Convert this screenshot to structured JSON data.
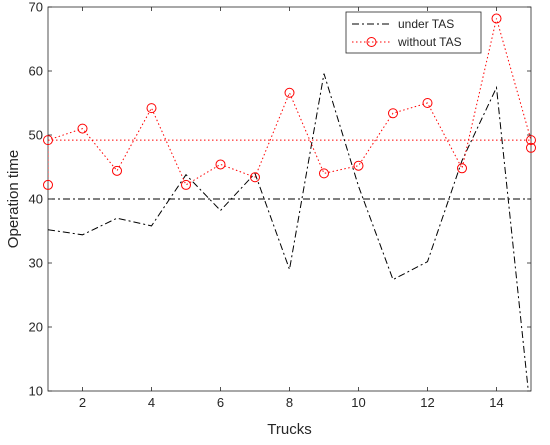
{
  "chart_data": {
    "type": "line",
    "xlabel": "Trucks",
    "ylabel": "Operation time",
    "xlim": [
      1,
      15
    ],
    "ylim": [
      10,
      70
    ],
    "xticks": [
      2,
      4,
      6,
      8,
      10,
      12,
      14
    ],
    "yticks": [
      10,
      20,
      30,
      40,
      50,
      60,
      70
    ],
    "grid": false,
    "legend_position": "top-right",
    "series": [
      {
        "name": "under TAS",
        "style": "dash-dot",
        "color": "#000000",
        "x": [
          1,
          2,
          3,
          4,
          5,
          6,
          7,
          8,
          9,
          10,
          11,
          12,
          13,
          14,
          15
        ],
        "values": [
          35.2,
          34.4,
          37.0,
          35.8,
          43.8,
          38.2,
          44.0,
          29.0,
          59.6,
          42.0,
          27.4,
          30.2,
          46.0,
          57.4,
          6.0
        ]
      },
      {
        "name": "without TAS",
        "style": "dotted-circle",
        "color": "#ff0000",
        "x": [
          1,
          1,
          2,
          3,
          4,
          5,
          6,
          7,
          8,
          9,
          10,
          11,
          12,
          13,
          14,
          15,
          15
        ],
        "values": [
          42.2,
          49.2,
          51.0,
          44.4,
          54.2,
          42.2,
          45.4,
          43.4,
          56.6,
          44.0,
          45.2,
          53.4,
          55.0,
          44.8,
          68.2,
          49.2,
          48.0
        ]
      },
      {
        "style": "dash-dot",
        "color": "#000000",
        "x": [
          1,
          15
        ],
        "values": [
          40.0,
          40.0
        ]
      },
      {
        "style": "dotted",
        "color": "#ff0000",
        "x": [
          1,
          15
        ],
        "values": [
          49.2,
          49.2
        ]
      }
    ]
  }
}
